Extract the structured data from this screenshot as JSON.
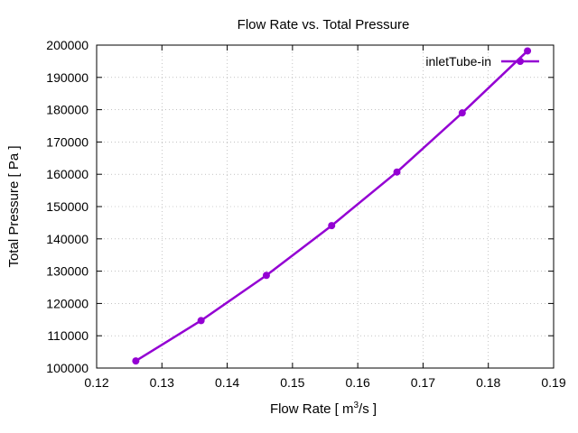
{
  "chart_data": {
    "type": "line",
    "title": "Flow Rate vs. Total Pressure",
    "xlabel_main": "Flow Rate [ m",
    "xlabel_sup": "3",
    "xlabel_tail": "/s ]",
    "ylabel": "Total Pressure [ Pa ]",
    "xlim": [
      0.12,
      0.19
    ],
    "ylim": [
      100000,
      200000
    ],
    "x_ticks": [
      "0.12",
      "0.13",
      "0.14",
      "0.15",
      "0.16",
      "0.17",
      "0.18",
      "0.19"
    ],
    "y_ticks": [
      "100000",
      "110000",
      "120000",
      "130000",
      "140000",
      "150000",
      "160000",
      "170000",
      "180000",
      "190000",
      "200000"
    ],
    "grid": true,
    "legend_position": "top-right",
    "series": [
      {
        "name": "inletTube-in",
        "color": "#9400d3",
        "x": [
          0.126,
          0.136,
          0.146,
          0.156,
          0.166,
          0.176,
          0.186
        ],
        "y": [
          102200,
          114700,
          128700,
          144100,
          160700,
          179000,
          198200
        ]
      }
    ]
  }
}
